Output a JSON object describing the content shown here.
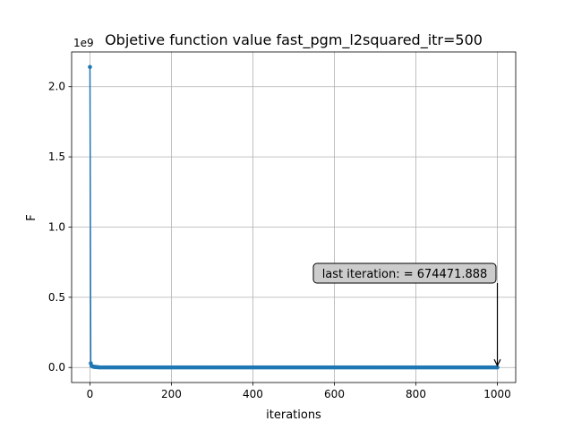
{
  "chart_data": {
    "type": "line",
    "title": "Objetive function value fast_pgm_l2squared_itr=500",
    "xlabel": "iterations",
    "ylabel": "F",
    "y_scale_label": "1e9",
    "xlim": [
      -45,
      1045
    ],
    "ylim": [
      -0.107,
      2.247
    ],
    "y_unit_divisor": 1000000000,
    "x_ticks": [
      0,
      200,
      400,
      600,
      800,
      1000
    ],
    "x_tick_labels": [
      "0",
      "200",
      "400",
      "600",
      "800",
      "1000"
    ],
    "y_ticks": [
      0.0,
      0.5,
      1.0,
      1.5,
      2.0
    ],
    "y_tick_labels": [
      "0.0",
      "0.5",
      "1.0",
      "1.5",
      "2.0"
    ],
    "grid": true,
    "series": [
      {
        "color": "#1f77b4",
        "marker": "circle",
        "x": [
          0,
          2,
          4,
          6,
          8,
          10,
          12,
          14,
          16,
          18,
          20,
          1000
        ],
        "y": [
          2140000000,
          30000000,
          12000000,
          8000000,
          6000000,
          5000000,
          4000000,
          3500000,
          3000000,
          2600000,
          2300000,
          674471.888
        ],
        "flat_tail": {
          "x_start": 22,
          "x_end": 998,
          "step": 4,
          "y": 700000
        }
      }
    ],
    "annotation": {
      "text": "last iteration: = 674471.888",
      "x": 1000,
      "y": 674471.888,
      "box_fill": "#cccccc"
    }
  }
}
